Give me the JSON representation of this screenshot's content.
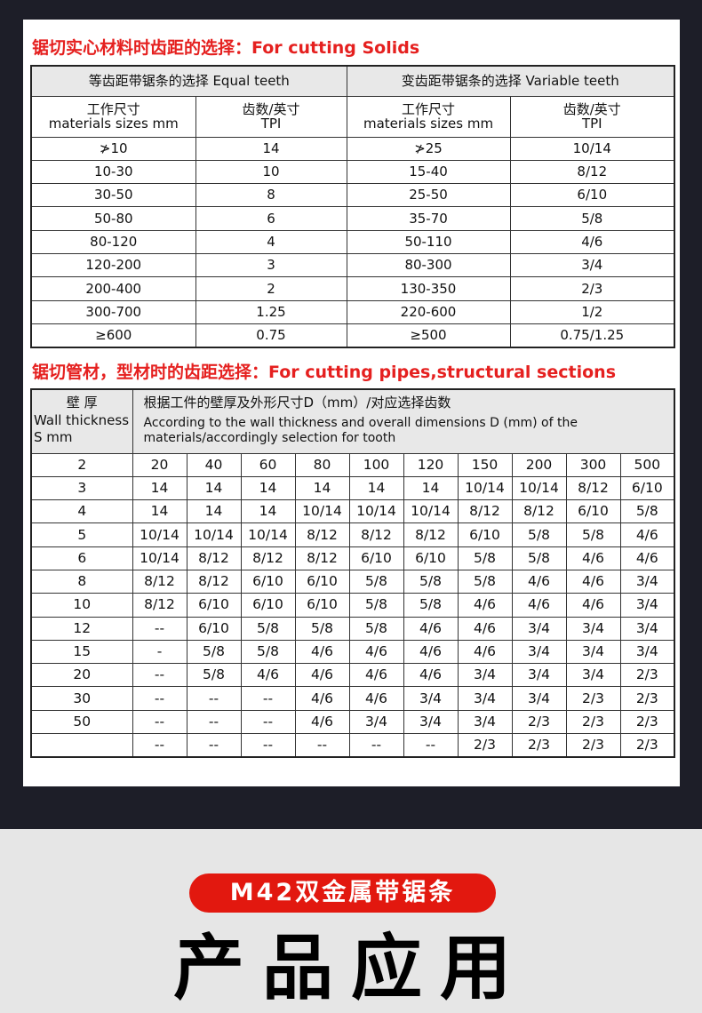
{
  "solids": {
    "heading": "锯切实心材料时齿距的选择：For cutting Solids",
    "equal_header": "等齿距带锯条的选择 Equal teeth",
    "variable_header": "变齿距带锯条的选择 Variable  teeth",
    "col_size_cn": "工作尺寸",
    "col_size_en": "materials sizes mm",
    "col_tpi_cn": "齿数/英寸",
    "col_tpi_en": "TPI",
    "rows": [
      [
        "≯10",
        "14",
        "≯25",
        "10/14"
      ],
      [
        "10-30",
        "10",
        "15-40",
        "8/12"
      ],
      [
        "30-50",
        "8",
        "25-50",
        "6/10"
      ],
      [
        "50-80",
        "6",
        "35-70",
        "5/8"
      ],
      [
        "80-120",
        "4",
        "50-110",
        "4/6"
      ],
      [
        "120-200",
        "3",
        "80-300",
        "3/4"
      ],
      [
        "200-400",
        "2",
        "130-350",
        "2/3"
      ],
      [
        "300-700",
        "1.25",
        "220-600",
        "1/2"
      ],
      [
        "≥600",
        "0.75",
        "≥500",
        "0.75/1.25"
      ]
    ]
  },
  "pipes": {
    "heading": "锯切管材，型材时的齿距选择：For cutting pipes,structural sections",
    "wall_cn": "壁 厚",
    "wall_en": "Wall thickness",
    "wall_unit": "S mm",
    "desc_cn": "根据工件的壁厚及外形尺寸D（mm）/对应选择齿数",
    "desc_en": "According to the wall thickness and overall dimensions D (mm) of the materials/accordingly selection for tooth",
    "rows": [
      [
        "2",
        "20",
        "40",
        "60",
        "80",
        "100",
        "120",
        "150",
        "200",
        "300",
        "500"
      ],
      [
        "3",
        "14",
        "14",
        "14",
        "14",
        "14",
        "14",
        "10/14",
        "10/14",
        "8/12",
        "6/10"
      ],
      [
        "4",
        "14",
        "14",
        "14",
        "10/14",
        "10/14",
        "10/14",
        "8/12",
        "8/12",
        "6/10",
        "5/8"
      ],
      [
        "5",
        "10/14",
        "10/14",
        "10/14",
        "8/12",
        "8/12",
        "8/12",
        "6/10",
        "5/8",
        "5/8",
        "4/6"
      ],
      [
        "6",
        "10/14",
        "8/12",
        "8/12",
        "8/12",
        "6/10",
        "6/10",
        "5/8",
        "5/8",
        "4/6",
        "4/6"
      ],
      [
        "8",
        "8/12",
        "8/12",
        "6/10",
        "6/10",
        "5/8",
        "5/8",
        "5/8",
        "4/6",
        "4/6",
        "3/4"
      ],
      [
        "10",
        "8/12",
        "6/10",
        "6/10",
        "6/10",
        "5/8",
        "5/8",
        "4/6",
        "4/6",
        "4/6",
        "3/4"
      ],
      [
        "12",
        "--",
        "6/10",
        "5/8",
        "5/8",
        "5/8",
        "4/6",
        "4/6",
        "3/4",
        "3/4",
        "3/4"
      ],
      [
        "15",
        "-",
        "5/8",
        "5/8",
        "4/6",
        "4/6",
        "4/6",
        "4/6",
        "3/4",
        "3/4",
        "3/4"
      ],
      [
        "20",
        "--",
        "5/8",
        "4/6",
        "4/6",
        "4/6",
        "4/6",
        "3/4",
        "3/4",
        "3/4",
        "2/3"
      ],
      [
        "30",
        "--",
        "--",
        "--",
        "4/6",
        "4/6",
        "3/4",
        "3/4",
        "3/4",
        "2/3",
        "2/3"
      ],
      [
        "50",
        "--",
        "--",
        "--",
        "4/6",
        "3/4",
        "3/4",
        "3/4",
        "2/3",
        "2/3",
        "2/3"
      ],
      [
        "",
        "--",
        "--",
        "--",
        "--",
        "--",
        "--",
        "2/3",
        "2/3",
        "2/3",
        "2/3"
      ]
    ]
  },
  "banner": {
    "pill": "M42双金属带锯条",
    "title": "产品应用"
  },
  "colors": {
    "heading_red": "#e5201f",
    "pill_red": "#e2180f",
    "dark_bg": "#1d1e28"
  }
}
